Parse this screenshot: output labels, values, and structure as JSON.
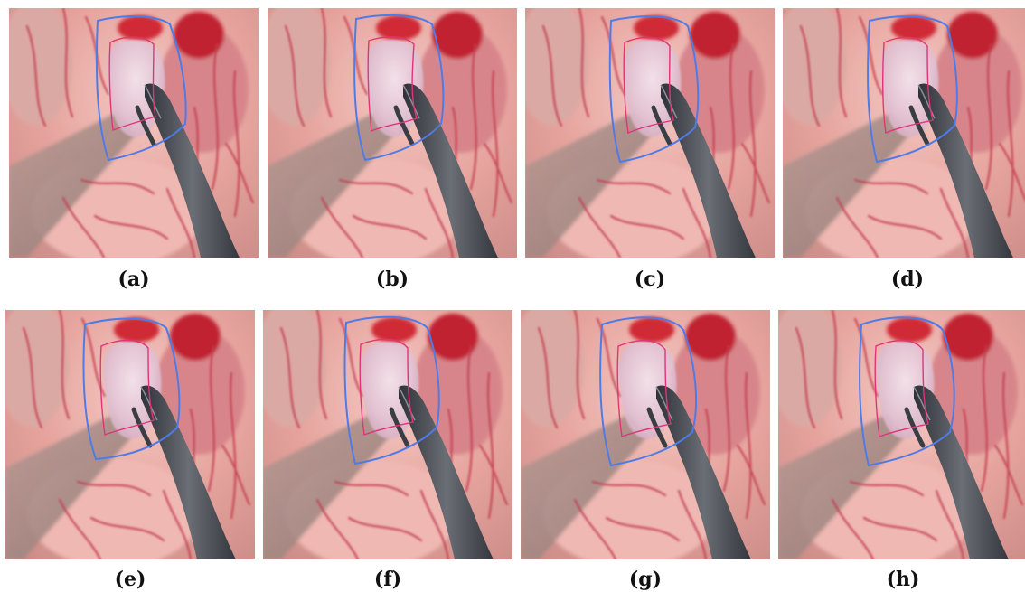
{
  "figure": {
    "panels": [
      {
        "label": "(a)"
      },
      {
        "label": "(b)"
      },
      {
        "label": "(c)"
      },
      {
        "label": "(d)"
      },
      {
        "label": "(e)"
      },
      {
        "label": "(f)"
      },
      {
        "label": "(g)"
      },
      {
        "label": "(h)"
      }
    ],
    "colors": {
      "tissue_base": "#e8a7a1",
      "tissue_light": "#f2c6bf",
      "vessel": "#c83a4c",
      "blood": "#d21d2a",
      "instrument": "#4d5158",
      "tumor": "#e8cfe0",
      "contour_blue": "#4f7be6",
      "contour_magenta": "#e0347a"
    }
  }
}
